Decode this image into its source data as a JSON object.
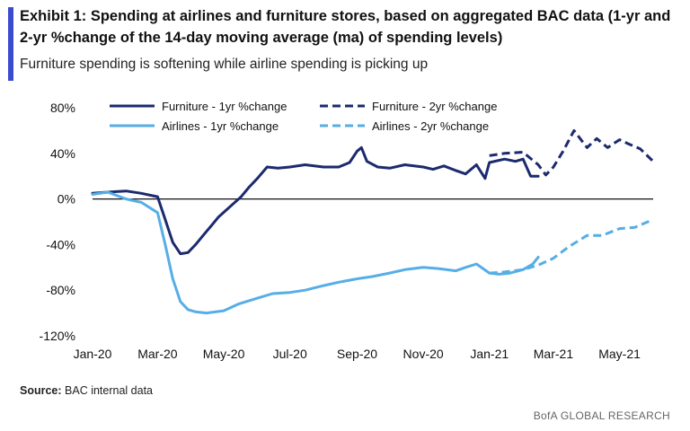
{
  "header": {
    "title": "Exhibit 1: Spending at airlines and furniture stores, based on aggregated BAC data (1-yr and 2-yr %change of the 14-day moving average (ma) of spending levels)",
    "subtitle": "Furniture spending is softening while airline spending is picking up"
  },
  "footer": {
    "source_label": "Source:",
    "source_text": "BAC internal data",
    "brand": "BofA GLOBAL RESEARCH"
  },
  "colors": {
    "accent": "#3c4ccf",
    "furniture": "#1c2a6e",
    "airlines": "#56aee6"
  },
  "chart_data": {
    "type": "line",
    "xlabel": "",
    "ylabel": "",
    "ylim": [
      -120,
      80
    ],
    "yticks": [
      80,
      40,
      0,
      -40,
      -80,
      -120
    ],
    "ytick_labels": [
      "80%",
      "40%",
      "0%",
      "-40%",
      "-80%",
      "-120%"
    ],
    "xticks": [
      "2020-01-01",
      "2020-03-01",
      "2020-05-01",
      "2020-07-01",
      "2020-09-01",
      "2020-11-01",
      "2021-01-01",
      "2021-03-01",
      "2021-05-01"
    ],
    "xtick_labels": [
      "Jan-20",
      "Mar-20",
      "May-20",
      "Jul-20",
      "Sep-20",
      "Nov-20",
      "Jan-21",
      "Mar-21",
      "May-21"
    ],
    "xlim": [
      "2020-01-01",
      "2021-06-01"
    ],
    "grid": false,
    "legend": "top",
    "series": [
      {
        "name": "Furniture - 1yr %change",
        "style": "solid",
        "color": "#1c2a6e",
        "x": [
          "2020-01-01",
          "2020-01-15",
          "2020-02-01",
          "2020-02-15",
          "2020-03-01",
          "2020-03-08",
          "2020-03-15",
          "2020-03-22",
          "2020-03-29",
          "2020-04-05",
          "2020-04-12",
          "2020-04-19",
          "2020-04-26",
          "2020-05-03",
          "2020-05-10",
          "2020-05-17",
          "2020-05-24",
          "2020-06-01",
          "2020-06-10",
          "2020-06-20",
          "2020-07-01",
          "2020-07-15",
          "2020-08-01",
          "2020-08-15",
          "2020-08-25",
          "2020-09-01",
          "2020-09-05",
          "2020-09-10",
          "2020-09-20",
          "2020-10-01",
          "2020-10-15",
          "2020-11-01",
          "2020-11-10",
          "2020-11-20",
          "2020-12-01",
          "2020-12-10",
          "2020-12-20",
          "2020-12-28",
          "2021-01-01",
          "2021-01-15",
          "2021-01-25",
          "2021-02-01",
          "2021-02-08",
          "2021-02-15"
        ],
        "values": [
          5,
          6,
          7,
          5,
          2,
          -18,
          -38,
          -48,
          -47,
          -40,
          -32,
          -24,
          -16,
          -10,
          -4,
          2,
          10,
          18,
          28,
          27,
          28,
          30,
          28,
          28,
          32,
          42,
          45,
          33,
          28,
          27,
          30,
          28,
          26,
          29,
          25,
          22,
          30,
          18,
          32,
          35,
          33,
          35,
          20,
          20
        ]
      },
      {
        "name": "Furniture - 2yr %change",
        "style": "dashed",
        "color": "#1c2a6e",
        "x": [
          "2021-01-01",
          "2021-01-15",
          "2021-02-01",
          "2021-02-15",
          "2021-02-22",
          "2021-03-01",
          "2021-03-10",
          "2021-03-20",
          "2021-04-01",
          "2021-04-10",
          "2021-04-20",
          "2021-05-01",
          "2021-05-10",
          "2021-05-20",
          "2021-06-01"
        ],
        "values": [
          38,
          40,
          41,
          30,
          21,
          28,
          42,
          60,
          45,
          53,
          45,
          52,
          48,
          44,
          33
        ]
      },
      {
        "name": "Airlines - 1yr %change",
        "style": "solid",
        "color": "#56aee6",
        "x": [
          "2020-01-01",
          "2020-01-15",
          "2020-02-01",
          "2020-02-15",
          "2020-03-01",
          "2020-03-08",
          "2020-03-15",
          "2020-03-22",
          "2020-03-29",
          "2020-04-05",
          "2020-04-15",
          "2020-05-01",
          "2020-05-15",
          "2020-06-01",
          "2020-06-15",
          "2020-07-01",
          "2020-07-15",
          "2020-08-01",
          "2020-08-15",
          "2020-09-01",
          "2020-09-15",
          "2020-10-01",
          "2020-10-15",
          "2020-11-01",
          "2020-11-15",
          "2020-12-01",
          "2020-12-10",
          "2020-12-20",
          "2021-01-01",
          "2021-01-10",
          "2021-01-20",
          "2021-02-01",
          "2021-02-10",
          "2021-02-15"
        ],
        "values": [
          4,
          6,
          0,
          -3,
          -12,
          -40,
          -70,
          -90,
          -97,
          -99,
          -100,
          -98,
          -92,
          -87,
          -83,
          -82,
          -80,
          -76,
          -73,
          -70,
          -68,
          -65,
          -62,
          -60,
          -61,
          -63,
          -60,
          -57,
          -65,
          -66,
          -65,
          -62,
          -57,
          -51
        ]
      },
      {
        "name": "Airlines - 2yr %change",
        "style": "dashed",
        "color": "#56aee6",
        "x": [
          "2021-01-01",
          "2021-01-15",
          "2021-02-01",
          "2021-02-15",
          "2021-03-01",
          "2021-03-15",
          "2021-04-01",
          "2021-04-15",
          "2021-05-01",
          "2021-05-15",
          "2021-06-01"
        ],
        "values": [
          -65,
          -64,
          -62,
          -58,
          -52,
          -42,
          -32,
          -32,
          -26,
          -25,
          -18
        ]
      }
    ]
  }
}
